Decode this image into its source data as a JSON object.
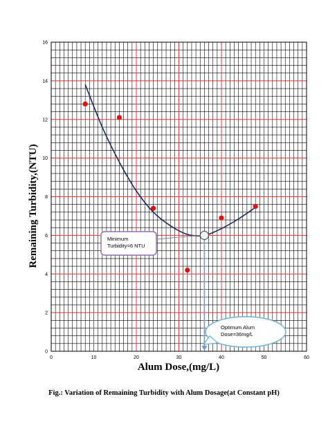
{
  "chart_data": {
    "type": "scatter",
    "xlabel": "Alum Dose,(mg/L)",
    "ylabel": "Remaining Turbidity,(NTU)",
    "xlim": [
      0,
      60
    ],
    "ylim": [
      0,
      16
    ],
    "x_ticks": [
      0,
      10,
      20,
      30,
      40,
      50,
      60
    ],
    "y_ticks": [
      0,
      2,
      4,
      6,
      8,
      10,
      12,
      14,
      16
    ],
    "grid": true,
    "major_grid_color": "#e0343c",
    "minor_grid_color": "#000000",
    "point_color": "#e01010",
    "curve_color": "#1a2a5e",
    "arrow_color": "#6b9bd1",
    "points": [
      {
        "x": 8,
        "y": 12.8
      },
      {
        "x": 16,
        "y": 12.1
      },
      {
        "x": 24,
        "y": 7.4
      },
      {
        "x": 32,
        "y": 4.2
      },
      {
        "x": 40,
        "y": 6.9
      },
      {
        "x": 48,
        "y": 7.5
      }
    ],
    "fit_curve": {
      "x": [
        8,
        12,
        16,
        20,
        24,
        28,
        32,
        36,
        40,
        44,
        48
      ],
      "y": [
        13.8,
        11.6,
        9.8,
        8.3,
        7.2,
        6.5,
        6.05,
        6.0,
        6.35,
        6.85,
        7.45
      ]
    },
    "optimum": {
      "x": 36,
      "y": 6
    },
    "annotations": [
      {
        "id": "minimum",
        "lines": [
          "Minimum",
          "Turbidity=6 NTU"
        ]
      },
      {
        "id": "optimum",
        "lines": [
          "Optimum Alum",
          "Dose=36mg/L"
        ]
      }
    ]
  },
  "caption": "Fig.: Variation of Remaining Turbidity with Alum Dosage(at Constant pH)"
}
